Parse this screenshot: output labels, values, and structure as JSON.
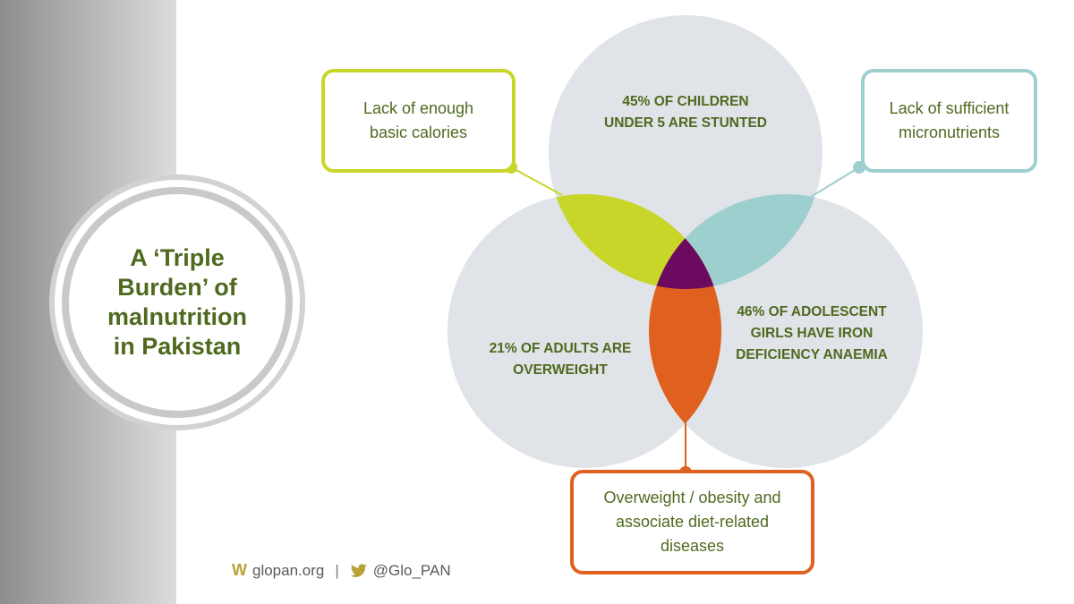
{
  "title": "A ‘Triple Burden’ of malnutrition in Pakistan",
  "circles": {
    "top": "45% OF CHILDREN UNDER 5 ARE STUNTED",
    "left": "21% OF ADULTS ARE OVERWEIGHT",
    "right": "46% OF ADOLESCENT GIRLS HAVE IRON DEFICIENCY ANAEMIA"
  },
  "callouts": {
    "calories": "Lack of enough basic calories",
    "micronutrients": "Lack of sufficient micronutrients",
    "obesity": "Overweight / obesity and associate diet-related diseases"
  },
  "footer": {
    "website": "glopan.org",
    "separator": "|",
    "twitter": "@Glo_PAN"
  },
  "colors": {
    "text_green": "#4f6a1f",
    "circle_fill": "#e0e3e8",
    "calories_lime": "#c8d62a",
    "micronutrients_teal": "#9ecfcf",
    "obesity_orange": "#e0601f",
    "center_purple": "#6b0a5f",
    "twitter_brand": "#b9a136"
  },
  "icons": {
    "website": "w-logo-icon",
    "twitter": "twitter-bird-icon"
  }
}
